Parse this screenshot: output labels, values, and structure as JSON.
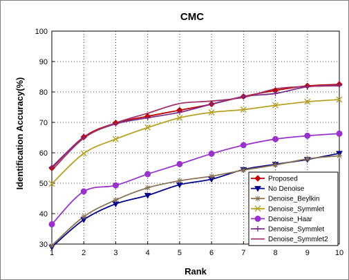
{
  "chart_data": {
    "type": "line",
    "title": "CMC",
    "xlabel": "Rank",
    "ylabel": "Identification Accuracy(%)",
    "x": [
      1,
      2,
      3,
      4,
      5,
      6,
      7,
      8,
      9,
      10
    ],
    "xlim": [
      1,
      10
    ],
    "ylim": [
      30,
      100
    ],
    "xticks": [
      "1",
      "2",
      "3",
      "4",
      "5",
      "6",
      "7",
      "8",
      "9",
      "10"
    ],
    "yticks": [
      "30",
      "40",
      "50",
      "60",
      "70",
      "80",
      "90",
      "100"
    ],
    "grid": true,
    "legend_position": "bottom-right",
    "series": [
      {
        "name": "Proposed",
        "color": "#c00000",
        "marker": "diamond",
        "values": [
          55,
          65.2,
          69.8,
          72,
          74,
          76,
          78.5,
          80.5,
          82,
          82.5
        ]
      },
      {
        "name": "No Denoise",
        "color": "#00008b",
        "marker": "triangle-down",
        "values": [
          29,
          38,
          43.2,
          46,
          49.5,
          51.3,
          54.5,
          56.2,
          57.8,
          59.8
        ]
      },
      {
        "name": "Denoise_Beylkin",
        "color": "#8b7355",
        "marker": "asterisk",
        "values": [
          29.5,
          39,
          44.5,
          48.5,
          50.8,
          52.3,
          54.3,
          56,
          58,
          59
        ]
      },
      {
        "name": "Denoise_Symmlet",
        "color": "#b8a020",
        "marker": "x",
        "values": [
          49.8,
          59.8,
          64.5,
          68.3,
          71.5,
          73.3,
          74.2,
          75.6,
          76.8,
          77.5
        ]
      },
      {
        "name": "Denoise_Haar",
        "color": "#9932cc",
        "marker": "circle",
        "values": [
          36.5,
          47.3,
          49.3,
          53,
          56.3,
          59.7,
          62.5,
          64.5,
          65.6,
          66.3
        ]
      },
      {
        "name": "Denoise_Symmlet",
        "color": "#7b2d8b",
        "marker": "plus",
        "values": [
          55.3,
          65,
          69.5,
          71.5,
          73.3,
          76,
          78.5,
          79.5,
          81.7,
          82.2
        ]
      },
      {
        "name": "Denoise_Symmlet2",
        "color": "#a0336a",
        "marker": "none",
        "values": [
          54.2,
          64.8,
          69.8,
          73,
          76.2,
          77,
          78.2,
          81,
          81.8,
          82
        ]
      }
    ]
  }
}
